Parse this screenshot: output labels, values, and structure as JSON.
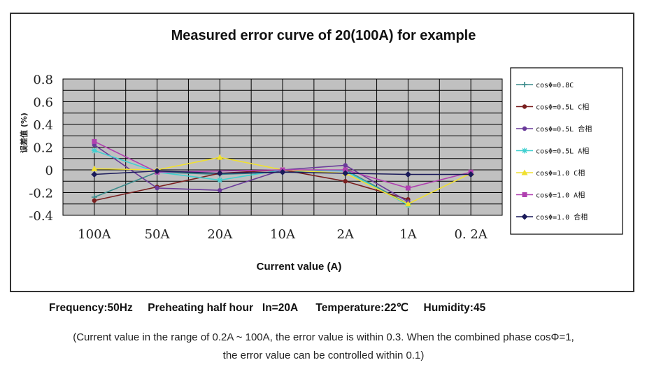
{
  "chart_data": {
    "type": "line",
    "title": "Measured error curve of 20(100A) for example",
    "xlabel": "Current value (A)",
    "ylabel": "误差值 (%)",
    "categories": [
      "100A",
      "50A",
      "20A",
      "10A",
      "2A",
      "1A",
      "0. 2A"
    ],
    "ylim": [
      -0.4,
      0.8
    ],
    "yticks": [
      0.8,
      0.6,
      0.4,
      0.2,
      0,
      -0.2,
      -0.4
    ],
    "ytick_labels": [
      "0.8",
      "0.6",
      "0.4",
      "0.2",
      "0",
      "-0.2",
      "-0.4"
    ],
    "grid": true,
    "legend_position": "right",
    "plot_background": "#c0c0c0",
    "series": [
      {
        "name": "cosΦ=0.8C",
        "color": "#3a8a8a",
        "marker": "plus",
        "values": [
          -0.24,
          -0.02,
          -0.04,
          -0.02,
          0.0,
          -0.3,
          null
        ]
      },
      {
        "name": "cosΦ=0.5L  C相",
        "color": "#7a1f1f",
        "marker": "circle",
        "values": [
          -0.27,
          -0.15,
          -0.03,
          0.0,
          -0.1,
          -0.26,
          null
        ]
      },
      {
        "name": "cosΦ=0.5L  合相",
        "color": "#6a3a9a",
        "marker": "circle",
        "values": [
          0.22,
          -0.16,
          -0.18,
          0.0,
          0.04,
          -0.28,
          null
        ]
      },
      {
        "name": "cosΦ=0.5L  A相",
        "color": "#40d0d0",
        "marker": "star",
        "values": [
          0.17,
          -0.02,
          -0.09,
          0.0,
          -0.01,
          -0.31,
          null
        ]
      },
      {
        "name": "cosΦ=1.0 C相",
        "color": "#f0e030",
        "marker": "triangle",
        "values": [
          0.01,
          0.0,
          0.11,
          0.0,
          -0.03,
          -0.3,
          -0.03
        ]
      },
      {
        "name": "cosΦ=1.0 A相",
        "color": "#b040b0",
        "marker": "square",
        "values": [
          0.25,
          -0.02,
          null,
          0.0,
          0.0,
          -0.16,
          -0.02
        ]
      },
      {
        "name": "cosΦ=1.0 合相",
        "color": "#1a1a5a",
        "marker": "diamond",
        "values": [
          -0.04,
          -0.01,
          -0.03,
          -0.02,
          -0.03,
          -0.04,
          -0.04
        ]
      }
    ]
  },
  "info": {
    "line": "Frequency:50Hz     Preheating half hour   In=20A      Temperature:22℃     Humidity:45"
  },
  "note": {
    "line1": "(Current value in the range of 0.2A ~ 100A, the error value is within 0.3. When the combined phase cosΦ=1,",
    "line2": "the error value can be controlled within 0.1)"
  }
}
